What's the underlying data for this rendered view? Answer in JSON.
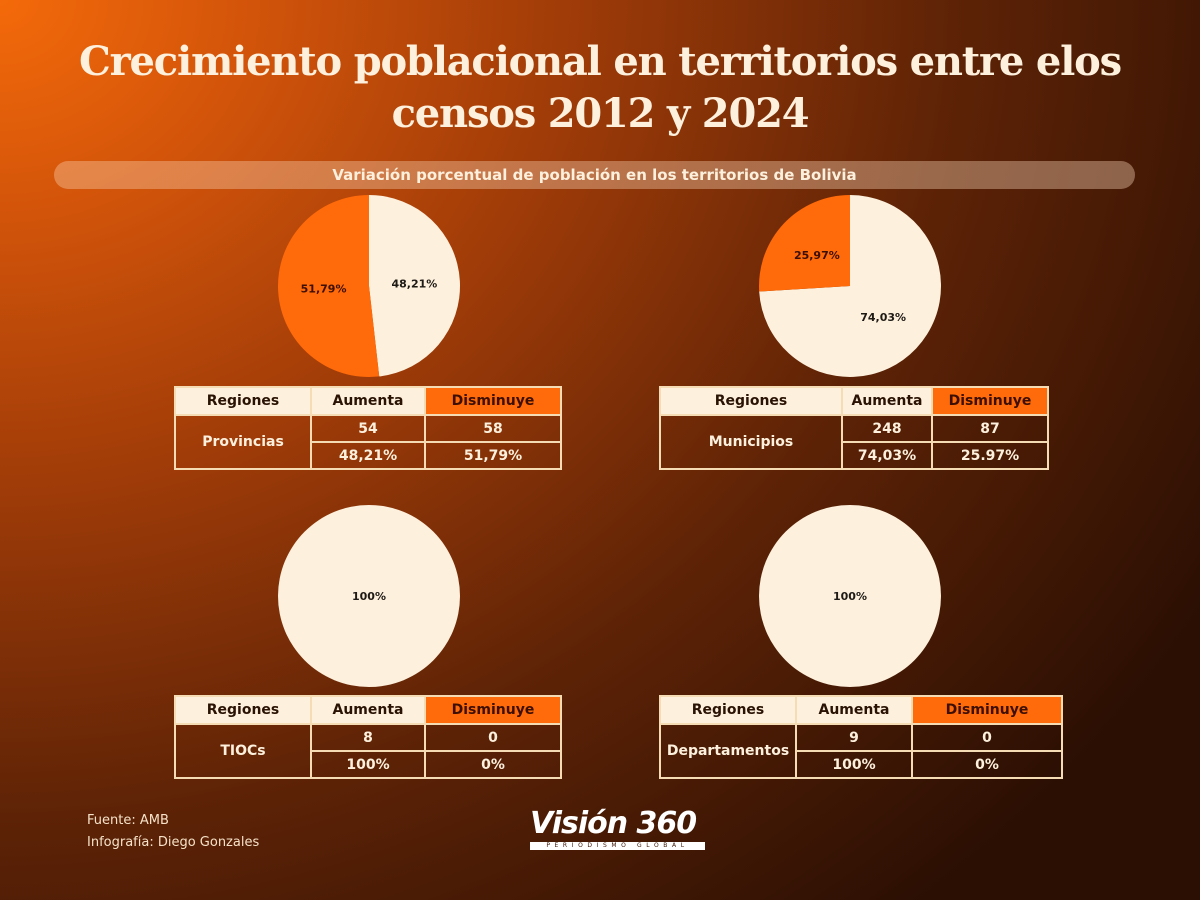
{
  "title_line1": "Crecimiento poblacional en territorios entre elos",
  "title_line2": "censos 2012 y 2024",
  "subtitle": "Variación porcentual de población en los territorios de Bolivia",
  "colors": {
    "aumenta": "#fdf0dc",
    "disminuye": "#ff6a0a",
    "label_dark": "#1e1a16",
    "label_disminuye": "#3d0f02"
  },
  "table_headers": {
    "regiones": "Regiones",
    "aumenta": "Aumenta",
    "disminuye": "Disminuye"
  },
  "panels": [
    {
      "region": "Provincias",
      "aumenta_count": "54",
      "disminuye_count": "58",
      "aumenta_pct": "48,21%",
      "disminuye_pct": "51,79%"
    },
    {
      "region": "Municipios",
      "aumenta_count": "248",
      "disminuye_count": "87",
      "aumenta_pct": "74,03%",
      "disminuye_pct": "25.97%"
    },
    {
      "region": "TIOCs",
      "aumenta_count": "8",
      "disminuye_count": "0",
      "aumenta_pct": "100%",
      "disminuye_pct": "0%"
    },
    {
      "region": "Departamentos",
      "aumenta_count": "9",
      "disminuye_count": "0",
      "aumenta_pct": "100%",
      "disminuye_pct": "0%"
    }
  ],
  "chart_data": [
    {
      "type": "pie",
      "title": "Provincias",
      "categories": [
        "Aumenta",
        "Disminuye"
      ],
      "values": [
        48.21,
        51.79
      ],
      "labels": [
        "48,21%",
        "51,79%"
      ]
    },
    {
      "type": "pie",
      "title": "Municipios",
      "categories": [
        "Aumenta",
        "Disminuye"
      ],
      "values": [
        74.03,
        25.97
      ],
      "labels": [
        "74,03%",
        "25,97%"
      ]
    },
    {
      "type": "pie",
      "title": "TIOCs",
      "categories": [
        "Aumenta",
        "Disminuye"
      ],
      "values": [
        100,
        0
      ],
      "labels": [
        "100%",
        ""
      ]
    },
    {
      "type": "pie",
      "title": "Departamentos",
      "categories": [
        "Aumenta",
        "Disminuye"
      ],
      "values": [
        100,
        0
      ],
      "labels": [
        "100%",
        ""
      ]
    }
  ],
  "footer": {
    "source": "Fuente: AMB",
    "credit": "Infografía: Diego Gonzales",
    "logo_name": "Visión 360",
    "logo_tagline": "PERIODISMO GLOBAL"
  }
}
